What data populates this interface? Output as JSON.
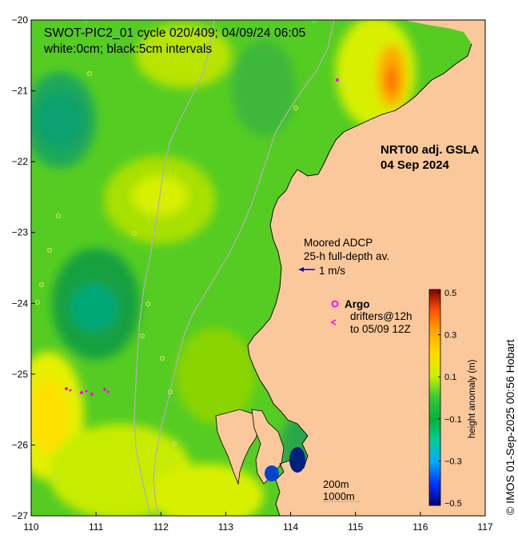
{
  "title": {
    "line1": "SWOT-PIC2_01 cycle 020/409; 04/09/24 06:05",
    "line2": "white:0cm; black:5cm intervals"
  },
  "product": {
    "line1": "NRT00 adj. GSLA",
    "line2": "04 Sep 2024"
  },
  "adcp_legend": {
    "line1": "Moored ADCP",
    "line2": "25-h full-depth av.",
    "vector_label": "1 m/s",
    "color": "#0000cc"
  },
  "argo_legend": {
    "label": "Argo",
    "marker": "o",
    "color": "#ff00ff"
  },
  "drifter_legend": {
    "marker": "<",
    "line1": "drifters@12h",
    "line2": "to 05/09 12Z",
    "color": "#ff00ff"
  },
  "contour_legend": {
    "line1": "200m",
    "line2": "1000m"
  },
  "colorbar": {
    "label": "height anomaly (m)",
    "ticks": [
      "0.5",
      "0.3",
      "0.1",
      "−0.1",
      "−0.3",
      "−0.5"
    ],
    "stops": [
      {
        "value": -0.5,
        "color": "#00007f"
      },
      {
        "value": -0.4,
        "color": "#0033ff"
      },
      {
        "value": -0.3,
        "color": "#00aaff"
      },
      {
        "value": -0.2,
        "color": "#00cc99"
      },
      {
        "value": -0.1,
        "color": "#00b33c"
      },
      {
        "value": 0.0,
        "color": "#33cc33"
      },
      {
        "value": 0.1,
        "color": "#ccf000"
      },
      {
        "value": 0.2,
        "color": "#ffdd00"
      },
      {
        "value": 0.3,
        "color": "#ffaa00"
      },
      {
        "value": 0.4,
        "color": "#ff5500"
      },
      {
        "value": 0.5,
        "color": "#800000"
      }
    ]
  },
  "axes": {
    "x_ticks": [
      "110",
      "111",
      "112",
      "113",
      "114",
      "115",
      "116",
      "117"
    ],
    "y_ticks": [
      "−20",
      "−21",
      "−22",
      "−23",
      "−24",
      "−25",
      "−26",
      "−27"
    ]
  },
  "credit": "© IMOS 01-Sep-2025 00:56 Hobart",
  "colors": {
    "land": "#fac89b",
    "ocean_base": "#55cc22",
    "isobath": "#b0b0b0",
    "coast": "#000000"
  }
}
